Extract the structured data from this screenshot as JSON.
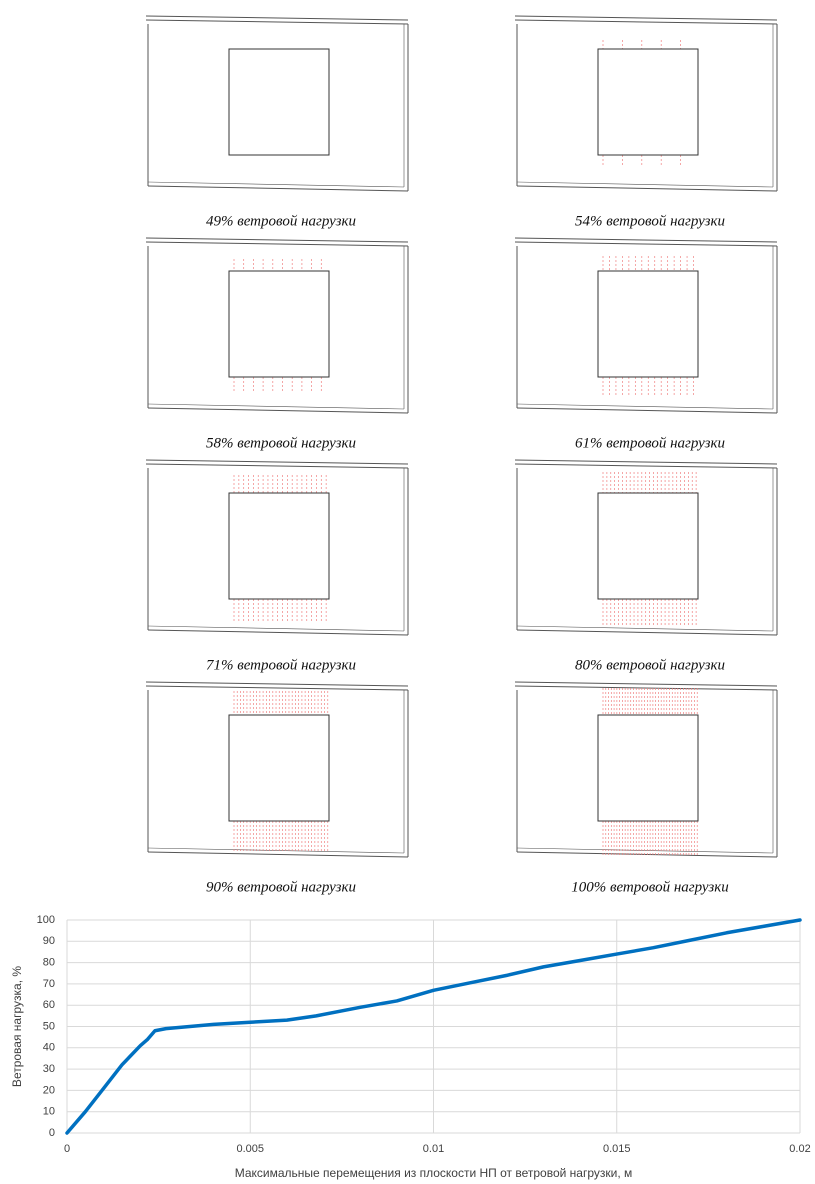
{
  "panels": [
    {
      "caption": "49% ветровой нагрузки"
    },
    {
      "caption": "54% ветровой нагрузки"
    },
    {
      "caption": "58% ветровой нагрузки"
    },
    {
      "caption": "61% ветровой нагрузки"
    },
    {
      "caption": "71% ветровой нагрузки"
    },
    {
      "caption": "80% ветровой нагрузки"
    },
    {
      "caption": "90% ветровой нагрузки"
    },
    {
      "caption": "100% ветровой нагрузки"
    }
  ],
  "chart_data": {
    "type": "line",
    "x_label": "Максимальные перемещения из плоскости НП от ветровой нагрузки, м",
    "y_label": "Ветровая нагрузка, %",
    "x": [
      0,
      0.0005,
      0.001,
      0.0015,
      0.002,
      0.0022,
      0.0024,
      0.0027,
      0.004,
      0.005,
      0.006,
      0.0068,
      0.008,
      0.009,
      0.01,
      0.011,
      0.012,
      0.013,
      0.014,
      0.015,
      0.016,
      0.017,
      0.018,
      0.019,
      0.02
    ],
    "series": [
      {
        "color": "#0070c0",
        "values": [
          0,
          10,
          21,
          32,
          41,
          44,
          48,
          49,
          51,
          52,
          53,
          55,
          59,
          62,
          67,
          70.5,
          74,
          78,
          81,
          84,
          87,
          90.5,
          94,
          97,
          100
        ]
      }
    ],
    "xlim": [
      0,
      0.02
    ],
    "xticks": [
      0,
      0.005,
      0.01,
      0.015,
      0.02
    ],
    "ylim": [
      0,
      100
    ],
    "yticks": [
      0,
      10,
      20,
      30,
      40,
      50,
      60,
      70,
      80,
      90,
      100
    ],
    "grid": true
  }
}
